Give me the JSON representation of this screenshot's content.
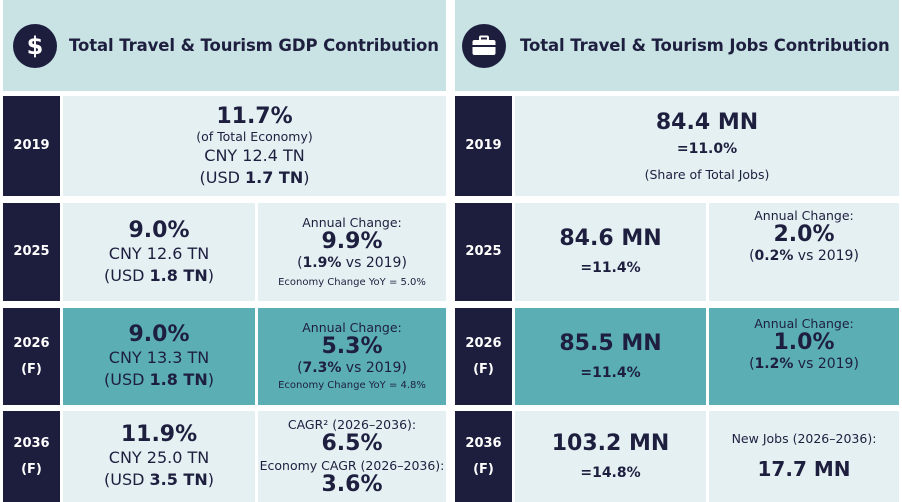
{
  "gdp": {
    "title": "Total Travel & Tourism GDP Contribution",
    "icon": "dollar-icon",
    "icon_glyph": "$",
    "r2019": {
      "year": "2019",
      "pct": "11.7%",
      "share_note": "(of Total Economy)",
      "cny": "CNY 12.4 TN",
      "usd_pre": "(USD ",
      "usd_val": "1.7 TN",
      "usd_post": ")"
    },
    "r2025": {
      "year": "2025",
      "pct": "9.0%",
      "cny": "CNY 12.6 TN",
      "usd_pre": "(USD ",
      "usd_val": "1.8 TN",
      "usd_post": ")",
      "change_label": "Annual Change:",
      "change_pct": "9.9%",
      "vs_pre": "(",
      "vs_val": "1.9%",
      "vs_post": " vs 2019)",
      "economy": "Economy Change YoY = 5.0%"
    },
    "r2026": {
      "year_line1": "2026",
      "year_line2": "(F)",
      "pct": "9.0%",
      "cny": "CNY 13.3 TN",
      "usd_pre": "(USD ",
      "usd_val": "1.8 TN",
      "usd_post": ")",
      "change_label": "Annual Change:",
      "change_pct": "5.3%",
      "vs_pre": "(",
      "vs_val": "7.3%",
      "vs_post": " vs 2019)",
      "economy": "Economy Change YoY = 4.8%"
    },
    "r2036": {
      "year_line1": "2036",
      "year_line2": "(F)",
      "pct": "11.9%",
      "cny": "CNY 25.0 TN",
      "usd_pre": "(USD ",
      "usd_val": "3.5 TN",
      "usd_post": ")",
      "cagr_label": "CAGR² (2026–2036):",
      "cagr_pct": "6.5%",
      "econ_cagr_label": "Economy CAGR (2026–2036):",
      "econ_cagr_pct": "3.6%"
    }
  },
  "jobs": {
    "title": "Total Travel & Tourism Jobs Contribution",
    "icon": "briefcase-icon",
    "r2019": {
      "year": "2019",
      "value": "84.4 MN",
      "pct": "=11.0%",
      "share_note": "(Share of Total Jobs)"
    },
    "r2025": {
      "year": "2025",
      "value": "84.6 MN",
      "pct": "=11.4%",
      "change_label": "Annual Change:",
      "change_pct": "2.0%",
      "vs_pre": "(",
      "vs_val": "0.2%",
      "vs_post": " vs 2019)"
    },
    "r2026": {
      "year_line1": "2026",
      "year_line2": "(F)",
      "value": "85.5 MN",
      "pct": "=11.4%",
      "change_label": "Annual Change:",
      "change_pct": "1.0%",
      "vs_pre": "(",
      "vs_val": "1.2%",
      "vs_post": " vs 2019)"
    },
    "r2036": {
      "year_line1": "2036",
      "year_line2": "(F)",
      "value": "103.2 MN",
      "pct": "=14.8%",
      "new_jobs_label": "New Jobs (2026–2036):",
      "new_jobs_value": "17.7 MN"
    }
  },
  "colors": {
    "navy": "#1d1e3e",
    "header_bg": "#c9e3e5",
    "light_bg": "#e4f0f2",
    "teal_bg": "#5aaeb4"
  }
}
